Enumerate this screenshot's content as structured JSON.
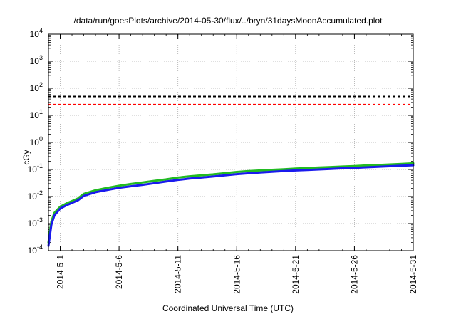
{
  "chart_data": {
    "type": "line",
    "title": "/data/run/goesPlots/archive/2014-05-30/flux/../bryn/31daysMoonAccumulated.plot",
    "xlabel": "Coordinated Universal Time (UTC)",
    "ylabel": "cGy",
    "x_ticks": [
      "2014-5-1",
      "2014-5-6",
      "2014-5-11",
      "2014-5-16",
      "2014-5-21",
      "2014-5-26",
      "2014-5-31"
    ],
    "xlim": [
      "2014-4-30",
      "2014-5-31"
    ],
    "yscale": "log",
    "ylim": [
      0.0001,
      10000
    ],
    "y_ticks": [
      {
        "base": "10",
        "exp": "-4"
      },
      {
        "base": "10",
        "exp": "-3"
      },
      {
        "base": "10",
        "exp": "-2"
      },
      {
        "base": "10",
        "exp": "-1"
      },
      {
        "base": "10",
        "exp": "0"
      },
      {
        "base": "10",
        "exp": "1"
      },
      {
        "base": "10",
        "exp": "2"
      },
      {
        "base": "10",
        "exp": "3"
      },
      {
        "base": "10",
        "exp": "4"
      }
    ],
    "grid": true,
    "thresholds": [
      {
        "value": 50,
        "color": "#000000",
        "style": "dashed"
      },
      {
        "value": 25,
        "color": "#ff0000",
        "style": "dashed"
      }
    ],
    "series": [
      {
        "color": "#22bb22",
        "x": [
          "2014-4-30",
          "2014-4-30T06",
          "2014-4-30T12",
          "2014-5-1",
          "2014-5-1T12",
          "2014-5-2",
          "2014-5-2T12",
          "2014-5-3",
          "2014-5-4",
          "2014-5-5",
          "2014-5-6",
          "2014-5-7",
          "2014-5-8",
          "2014-5-9",
          "2014-5-10",
          "2014-5-11",
          "2014-5-12",
          "2014-5-13",
          "2014-5-14",
          "2014-5-15",
          "2014-5-16",
          "2014-5-17",
          "2014-5-18",
          "2014-5-19",
          "2014-5-20",
          "2014-5-21",
          "2014-5-22",
          "2014-5-23",
          "2014-5-24",
          "2014-5-25",
          "2014-5-26",
          "2014-5-27",
          "2014-5-28",
          "2014-5-29",
          "2014-5-30",
          "2014-5-31"
        ],
        "values": [
          0.0002,
          0.0012,
          0.0025,
          0.0042,
          0.0055,
          0.0068,
          0.0085,
          0.0125,
          0.017,
          0.021,
          0.025,
          0.029,
          0.033,
          0.038,
          0.043,
          0.05,
          0.056,
          0.061,
          0.066,
          0.073,
          0.081,
          0.087,
          0.092,
          0.097,
          0.102,
          0.108,
          0.113,
          0.118,
          0.123,
          0.128,
          0.134,
          0.14,
          0.146,
          0.153,
          0.16,
          0.168
        ]
      },
      {
        "color": "#1a1aee",
        "x": [
          "2014-4-30",
          "2014-4-30T06",
          "2014-4-30T12",
          "2014-5-1",
          "2014-5-1T12",
          "2014-5-2",
          "2014-5-2T12",
          "2014-5-3",
          "2014-5-4",
          "2014-5-5",
          "2014-5-6",
          "2014-5-7",
          "2014-5-8",
          "2014-5-9",
          "2014-5-10",
          "2014-5-11",
          "2014-5-12",
          "2014-5-13",
          "2014-5-14",
          "2014-5-15",
          "2014-5-16",
          "2014-5-17",
          "2014-5-18",
          "2014-5-19",
          "2014-5-20",
          "2014-5-21",
          "2014-5-22",
          "2014-5-23",
          "2014-5-24",
          "2014-5-25",
          "2014-5-26",
          "2014-5-27",
          "2014-5-28",
          "2014-5-29",
          "2014-5-30",
          "2014-5-31"
        ],
        "values": [
          0.00015,
          0.0009,
          0.002,
          0.0036,
          0.0047,
          0.0058,
          0.0072,
          0.0105,
          0.0145,
          0.0175,
          0.021,
          0.024,
          0.027,
          0.031,
          0.036,
          0.041,
          0.046,
          0.05,
          0.055,
          0.061,
          0.067,
          0.072,
          0.077,
          0.082,
          0.087,
          0.092,
          0.096,
          0.1,
          0.105,
          0.11,
          0.115,
          0.12,
          0.125,
          0.131,
          0.137,
          0.143
        ]
      }
    ]
  }
}
